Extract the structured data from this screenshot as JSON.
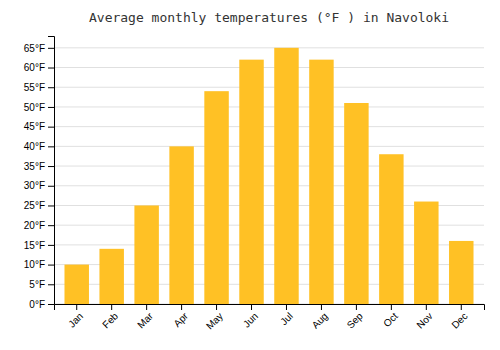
{
  "chart_data": {
    "type": "bar",
    "title": "Average monthly temperatures (°F ) in Navoloki",
    "categories": [
      "Jan",
      "Feb",
      "Mar",
      "Apr",
      "May",
      "Jun",
      "Jul",
      "Aug",
      "Sep",
      "Oct",
      "Nov",
      "Dec"
    ],
    "values": [
      10,
      14,
      25,
      40,
      54,
      62,
      65,
      62,
      51,
      38,
      26,
      16
    ],
    "color": "#FFC125",
    "ylim": [
      0,
      68
    ],
    "yticks": [
      {
        "value": 0,
        "label": "0°F"
      },
      {
        "value": 5,
        "label": "5°F"
      },
      {
        "value": 10,
        "label": "10°F"
      },
      {
        "value": 15,
        "label": "15°F"
      },
      {
        "value": 20,
        "label": "20°F"
      },
      {
        "value": 25,
        "label": "25°F"
      },
      {
        "value": 30,
        "label": "30°F"
      },
      {
        "value": 35,
        "label": "35°F"
      },
      {
        "value": 40,
        "label": "40°F"
      },
      {
        "value": 45,
        "label": "45°F"
      },
      {
        "value": 50,
        "label": "50°F"
      },
      {
        "value": 55,
        "label": "55°F"
      },
      {
        "value": 60,
        "label": "60°F"
      },
      {
        "value": 65,
        "label": "65°F"
      }
    ],
    "grid": true
  }
}
